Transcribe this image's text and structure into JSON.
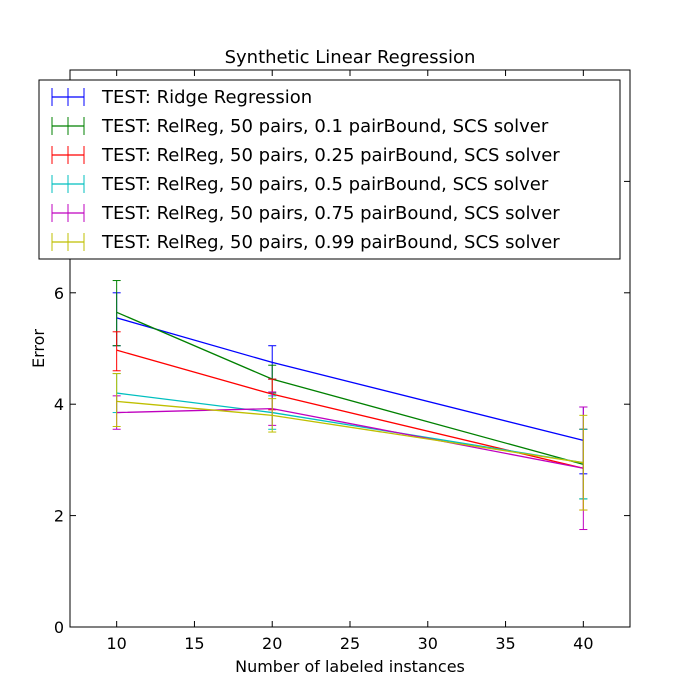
{
  "chart_data": {
    "type": "line",
    "title": "Synthetic Linear Regression",
    "xlabel": "Number of labeled instances",
    "ylabel": "Error",
    "xlim": [
      7,
      43
    ],
    "ylim": [
      0,
      10
    ],
    "x": [
      10,
      20,
      40
    ],
    "xticks": [
      10,
      15,
      20,
      25,
      30,
      35,
      40
    ],
    "yticks": [
      0,
      2,
      4,
      6
    ],
    "grid": false,
    "legend_position": "upper-left",
    "series": [
      {
        "name": "TEST: Ridge Regression",
        "color": "#0000ff",
        "values": [
          5.55,
          4.75,
          3.35
        ],
        "err_low": [
          5.05,
          4.45,
          2.75
        ],
        "err_high": [
          6.0,
          5.05,
          3.95
        ]
      },
      {
        "name": "TEST: RelReg, 50 pairs, 0.1 pairBound, SCS solver",
        "color": "#008000",
        "values": [
          5.65,
          4.45,
          2.92
        ],
        "err_low": [
          5.05,
          4.2,
          2.3
        ],
        "err_high": [
          6.22,
          4.7,
          3.55
        ]
      },
      {
        "name": "TEST: RelReg, 50 pairs, 0.25 pairBound, SCS solver",
        "color": "#ff0000",
        "values": [
          4.97,
          4.18,
          2.85
        ],
        "err_low": [
          4.6,
          3.9,
          2.1
        ],
        "err_high": [
          5.3,
          4.45,
          3.55
        ]
      },
      {
        "name": "TEST: RelReg, 50 pairs, 0.5 pairBound, SCS solver",
        "color": "#00bfbf",
        "values": [
          4.2,
          3.85,
          2.95
        ],
        "err_low": [
          3.85,
          3.55,
          2.3
        ],
        "err_high": [
          4.55,
          4.15,
          3.55
        ]
      },
      {
        "name": "TEST: RelReg, 50 pairs, 0.75 pairBound, SCS solver",
        "color": "#bf00bf",
        "values": [
          3.85,
          3.92,
          2.85
        ],
        "err_low": [
          3.55,
          3.62,
          1.75
        ],
        "err_high": [
          4.15,
          4.22,
          3.95
        ]
      },
      {
        "name": "TEST: RelReg, 50 pairs, 0.99 pairBound, SCS solver",
        "color": "#bfbf00",
        "values": [
          4.05,
          3.8,
          2.95
        ],
        "err_low": [
          3.6,
          3.5,
          2.1
        ],
        "err_high": [
          4.55,
          4.1,
          3.8
        ]
      }
    ]
  }
}
